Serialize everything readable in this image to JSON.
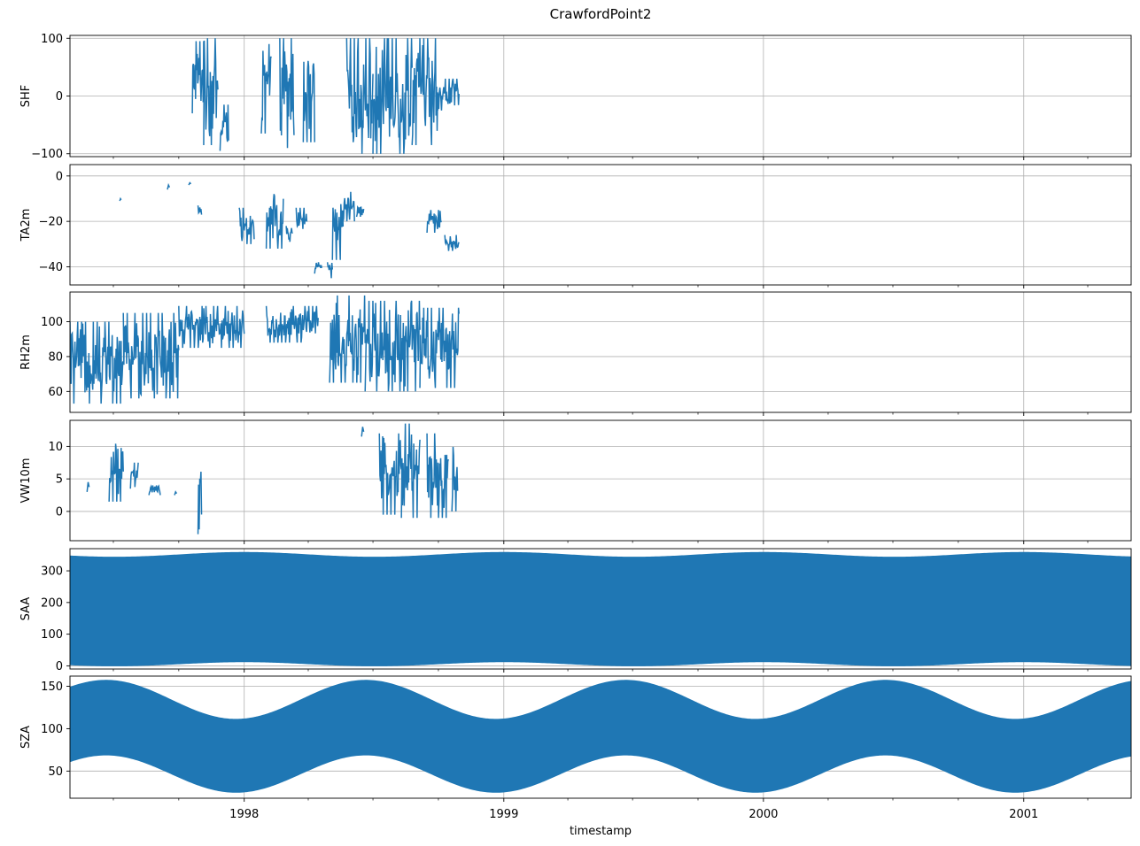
{
  "figure": {
    "title": "CrawfordPoint2",
    "xlabel": "timestamp",
    "x_range": [
      "1997-05-01",
      "2001-06-01"
    ],
    "x_ticks": [
      {
        "date": "1998-01-01",
        "label": "1998"
      },
      {
        "date": "1999-01-01",
        "label": "1999"
      },
      {
        "date": "2000-01-01",
        "label": "2000"
      },
      {
        "date": "2001-01-01",
        "label": "2001"
      }
    ],
    "series_color": "#1f77b4",
    "grid": true
  },
  "chart_data": [
    {
      "type": "line",
      "ylabel": "SHF",
      "ylim": [
        -105,
        105
      ],
      "yticks": [
        {
          "v": 100,
          "label": "100"
        },
        {
          "v": 0,
          "label": "0"
        },
        {
          "v": -100,
          "label": "−100"
        }
      ],
      "segments": [
        {
          "x0": "1997-10-20",
          "x1": "1997-11-05",
          "y": [
            -30,
            95
          ]
        },
        {
          "x0": "1997-11-05",
          "x1": "1997-11-25",
          "y": [
            -85,
            100
          ]
        },
        {
          "x0": "1997-11-28",
          "x1": "1997-12-10",
          "y": [
            -95,
            -15
          ]
        },
        {
          "x0": "1998-01-25",
          "x1": "1998-02-08",
          "y": [
            -65,
            90
          ]
        },
        {
          "x0": "1998-02-20",
          "x1": "1998-03-12",
          "y": [
            -90,
            100
          ]
        },
        {
          "x0": "1998-03-25",
          "x1": "1998-04-10",
          "y": [
            -80,
            100
          ]
        },
        {
          "x0": "1998-05-25",
          "x1": "1998-07-01",
          "y": [
            -100,
            100
          ]
        },
        {
          "x0": "1998-07-01",
          "x1": "1998-08-25",
          "y": [
            -100,
            100
          ]
        },
        {
          "x0": "1998-08-25",
          "x1": "1998-09-30",
          "y": [
            -85,
            100
          ]
        },
        {
          "x0": "1998-09-30",
          "x1": "1998-10-30",
          "y": [
            -25,
            30
          ]
        }
      ]
    },
    {
      "type": "line",
      "ylabel": "TA2m",
      "ylim": [
        -48,
        5
      ],
      "yticks": [
        {
          "v": 0,
          "label": "0"
        },
        {
          "v": -20,
          "label": "−20"
        },
        {
          "v": -40,
          "label": "−40"
        }
      ],
      "segments": [
        {
          "x0": "1997-07-10",
          "x1": "1997-07-12",
          "y": [
            -11,
            -10
          ]
        },
        {
          "x0": "1997-09-15",
          "x1": "1997-09-18",
          "y": [
            -6,
            -4
          ]
        },
        {
          "x0": "1997-10-15",
          "x1": "1997-10-18",
          "y": [
            -4,
            -3
          ]
        },
        {
          "x0": "1997-10-28",
          "x1": "1997-11-02",
          "y": [
            -19,
            -13
          ]
        },
        {
          "x0": "1997-12-25",
          "x1": "1998-01-15",
          "y": [
            -30,
            -14
          ]
        },
        {
          "x0": "1998-02-01",
          "x1": "1998-02-25",
          "y": [
            -32,
            -8
          ]
        },
        {
          "x0": "1998-03-01",
          "x1": "1998-03-10",
          "y": [
            -29,
            -22
          ]
        },
        {
          "x0": "1998-03-15",
          "x1": "1998-03-30",
          "y": [
            -25,
            -14
          ]
        },
        {
          "x0": "1998-04-10",
          "x1": "1998-04-20",
          "y": [
            -43,
            -38
          ]
        },
        {
          "x0": "1998-04-28",
          "x1": "1998-05-05",
          "y": [
            -45,
            -38
          ]
        },
        {
          "x0": "1998-05-05",
          "x1": "1998-05-20",
          "y": [
            -37,
            -6
          ]
        },
        {
          "x0": "1998-05-20",
          "x1": "1998-06-05",
          "y": [
            -20,
            -7
          ]
        },
        {
          "x0": "1998-06-08",
          "x1": "1998-06-18",
          "y": [
            -18,
            -12
          ]
        },
        {
          "x0": "1998-09-15",
          "x1": "1998-10-05",
          "y": [
            -25,
            -15
          ]
        },
        {
          "x0": "1998-10-10",
          "x1": "1998-10-30",
          "y": [
            -33,
            -26
          ]
        }
      ]
    },
    {
      "type": "line",
      "ylabel": "RH2m",
      "ylim": [
        48,
        117
      ],
      "yticks": [
        {
          "v": 100,
          "label": "100"
        },
        {
          "v": 80,
          "label": "80"
        },
        {
          "v": 60,
          "label": "60"
        }
      ],
      "segments": [
        {
          "x0": "1997-05-01",
          "x1": "1997-07-15",
          "y": [
            53,
            100
          ]
        },
        {
          "x0": "1997-07-15",
          "x1": "1997-10-01",
          "y": [
            56,
            105
          ]
        },
        {
          "x0": "1997-10-01",
          "x1": "1998-01-01",
          "y": [
            85,
            109
          ]
        },
        {
          "x0": "1998-02-01",
          "x1": "1998-04-15",
          "y": [
            88,
            109
          ]
        },
        {
          "x0": "1998-05-01",
          "x1": "1998-06-20",
          "y": [
            65,
            115
          ]
        },
        {
          "x0": "1998-06-20",
          "x1": "1998-09-05",
          "y": [
            60,
            112
          ]
        },
        {
          "x0": "1998-09-05",
          "x1": "1998-10-30",
          "y": [
            62,
            108
          ]
        }
      ]
    },
    {
      "type": "line",
      "ylabel": "VW10m",
      "ylim": [
        -4.5,
        14
      ],
      "yticks": [
        {
          "v": 10,
          "label": "10"
        },
        {
          "v": 5,
          "label": "5"
        },
        {
          "v": 0,
          "label": "0"
        }
      ],
      "segments": [
        {
          "x0": "1997-05-25",
          "x1": "1997-05-28",
          "y": [
            3,
            4.5
          ]
        },
        {
          "x0": "1997-06-25",
          "x1": "1997-07-15",
          "y": [
            1.5,
            11
          ]
        },
        {
          "x0": "1997-07-25",
          "x1": "1997-08-05",
          "y": [
            3.5,
            7.5
          ]
        },
        {
          "x0": "1997-08-20",
          "x1": "1997-09-05",
          "y": [
            2.5,
            4
          ]
        },
        {
          "x0": "1997-09-25",
          "x1": "1997-09-28",
          "y": [
            2.5,
            3
          ]
        },
        {
          "x0": "1997-10-28",
          "x1": "1997-11-02",
          "y": [
            -3.5,
            9
          ]
        },
        {
          "x0": "1998-06-15",
          "x1": "1998-06-18",
          "y": [
            11.5,
            13
          ]
        },
        {
          "x0": "1998-07-10",
          "x1": "1998-08-10",
          "y": [
            -0.5,
            12
          ]
        },
        {
          "x0": "1998-08-10",
          "x1": "1998-09-05",
          "y": [
            -1,
            13.5
          ]
        },
        {
          "x0": "1998-09-15",
          "x1": "1998-10-15",
          "y": [
            -1,
            12
          ]
        },
        {
          "x0": "1998-10-20",
          "x1": "1998-10-28",
          "y": [
            0,
            11.5
          ]
        }
      ]
    },
    {
      "type": "area",
      "ylabel": "SAA",
      "ylim": [
        -10,
        370
      ],
      "yticks": [
        {
          "v": 300,
          "label": "300"
        },
        {
          "v": 200,
          "label": "200"
        },
        {
          "v": 100,
          "label": "100"
        },
        {
          "v": 0,
          "label": "0"
        }
      ],
      "band": {
        "lower_min": 0,
        "lower_max": 13,
        "upper_min": 343,
        "upper_max": 358,
        "phase_peak": "1998-01-01"
      }
    },
    {
      "type": "area",
      "ylabel": "SZA",
      "ylim": [
        18,
        162
      ],
      "yticks": [
        {
          "v": 150,
          "label": "150"
        },
        {
          "v": 100,
          "label": "100"
        },
        {
          "v": 50,
          "label": "50"
        }
      ],
      "band": {
        "lower_min": 25,
        "lower_max": 69,
        "upper_min": 111,
        "upper_max": 157,
        "phase_peak": "1998-06-21"
      }
    }
  ]
}
